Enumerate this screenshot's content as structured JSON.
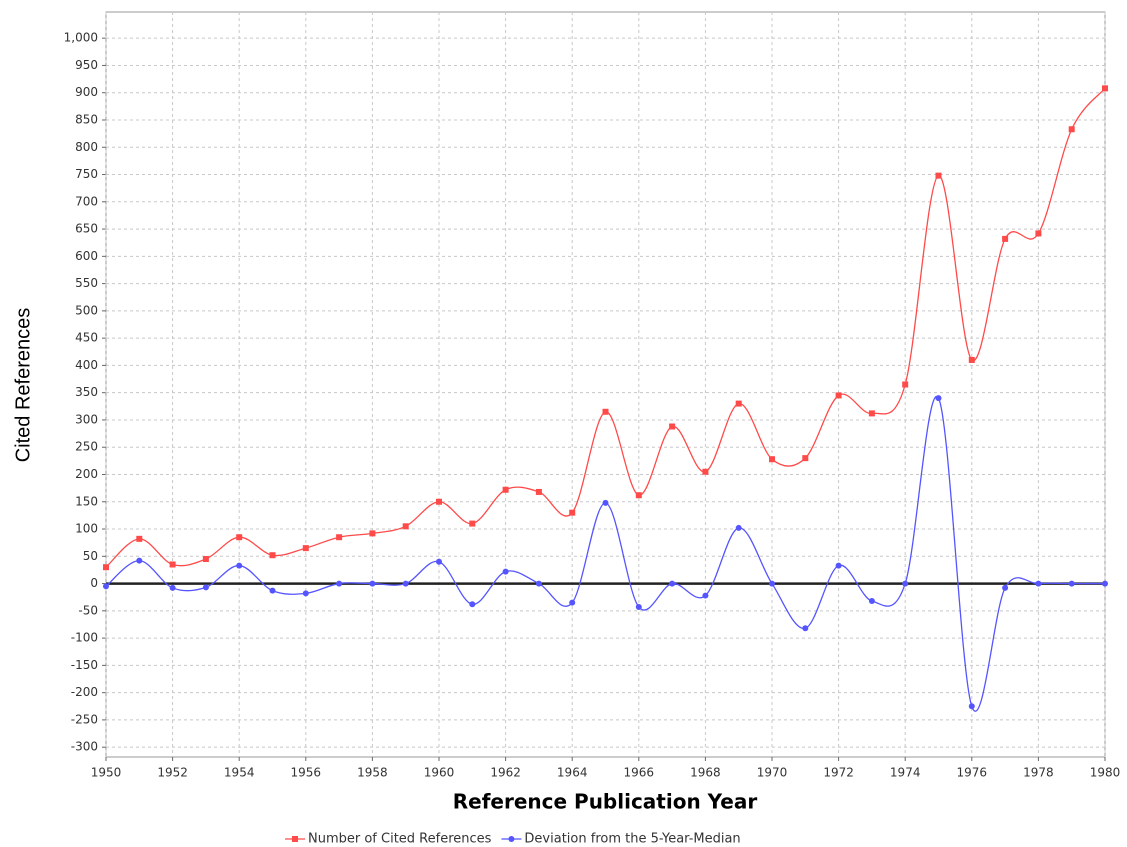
{
  "chart_data": {
    "type": "line",
    "x_label": "Reference Publication Year",
    "y_label": "Cited References",
    "x": [
      1950,
      1951,
      1952,
      1953,
      1954,
      1955,
      1956,
      1957,
      1958,
      1959,
      1960,
      1961,
      1962,
      1963,
      1964,
      1965,
      1966,
      1967,
      1968,
      1969,
      1970,
      1971,
      1972,
      1973,
      1974,
      1975,
      1976,
      1977,
      1978,
      1979,
      1980
    ],
    "series": [
      {
        "name": "Number of Cited References",
        "color": "#ff4a4a",
        "values": [
          30,
          82,
          35,
          45,
          85,
          52,
          65,
          85,
          92,
          105,
          150,
          110,
          172,
          168,
          130,
          315,
          162,
          288,
          205,
          330,
          228,
          230,
          345,
          312,
          365,
          748,
          410,
          632,
          642,
          833,
          908
        ]
      },
      {
        "name": "Deviation from the 5-Year-Median",
        "color": "#5555ff",
        "values": [
          -5,
          42,
          -8,
          -7,
          33,
          -13,
          -18,
          0,
          0,
          0,
          40,
          -38,
          22,
          0,
          -35,
          148,
          -43,
          0,
          -22,
          102,
          0,
          -82,
          33,
          -32,
          0,
          340,
          -225,
          -8,
          0,
          0,
          0
        ]
      }
    ],
    "xlim": [
      1950,
      1980
    ],
    "xticks": [
      1950,
      1952,
      1954,
      1956,
      1958,
      1960,
      1962,
      1964,
      1966,
      1968,
      1970,
      1972,
      1974,
      1976,
      1978,
      1980
    ],
    "ylim": [
      -318,
      1048
    ],
    "yticks": [
      -300,
      -250,
      -200,
      -150,
      -100,
      -50,
      0,
      50,
      100,
      150,
      200,
      250,
      300,
      350,
      400,
      450,
      500,
      550,
      600,
      650,
      700,
      750,
      800,
      850,
      900,
      950,
      {
        "value": 1000,
        "label": "1,000"
      }
    ],
    "grid": true,
    "legend": "bottom"
  }
}
